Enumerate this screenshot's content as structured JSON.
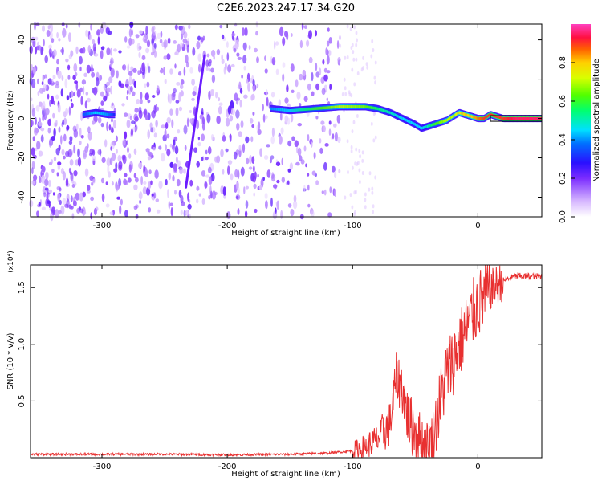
{
  "title": "C2E6.2023.247.17.34.G20",
  "chart_data": [
    {
      "type": "heatmap",
      "xlabel": "Height of straight line (km)",
      "ylabel": "Frequency (Hz)",
      "xlim": [
        -357,
        51
      ],
      "ylim": [
        -50,
        48
      ],
      "xticks": [
        -300,
        -200,
        -100,
        0
      ],
      "yticks": [
        -40,
        -20,
        0,
        20,
        40
      ],
      "colorbar": {
        "label": "Normalized spectral amplitude",
        "range": [
          0,
          1
        ],
        "ticks": [
          0.0,
          0.2,
          0.4,
          0.6,
          0.8
        ],
        "colormap": [
          "#ffffff",
          "#d7b8ff",
          "#7b2cff",
          "#2a10ff",
          "#0070ff",
          "#00e0ff",
          "#00ff70",
          "#50ff00",
          "#d8ff00",
          "#ffd000",
          "#ff6000",
          "#ff1040",
          "#ff40c0"
        ]
      },
      "noise_extent_km": [
        -357,
        -110
      ],
      "signal_track": {
        "x": [
          -315,
          -305,
          -295,
          -290,
          -165,
          -150,
          -130,
          -110,
          -90,
          -80,
          -70,
          -60,
          -50,
          -45,
          -40,
          -35,
          -30,
          -25,
          -20,
          -15,
          -10,
          -5,
          0,
          5,
          10,
          15,
          20,
          30,
          40,
          51
        ],
        "y": [
          2,
          3,
          2,
          2,
          5,
          4,
          5,
          6,
          6,
          5,
          3,
          0,
          -3,
          -5,
          -4,
          -3,
          -2,
          -1,
          1,
          3,
          2,
          1,
          0,
          0,
          2,
          1,
          0,
          0,
          0,
          0
        ],
        "amplitude": [
          0.35,
          0.45,
          0.4,
          0.3,
          0.4,
          0.45,
          0.6,
          0.7,
          0.65,
          0.55,
          0.5,
          0.45,
          0.45,
          0.45,
          0.5,
          0.6,
          0.65,
          0.7,
          0.7,
          0.75,
          0.8,
          0.8,
          0.85,
          0.9,
          0.9,
          0.9,
          0.9,
          0.95,
          0.95,
          0.95
        ]
      },
      "streak": {
        "x": [
          -233,
          -218
        ],
        "y": [
          -35,
          32
        ]
      }
    },
    {
      "type": "line",
      "xlabel": "Height of straight line (km)",
      "ylabel": "SNR (10 * v/v)",
      "yscale_label": "(x10⁴)",
      "xlim": [
        -357,
        51
      ],
      "ylim": [
        0.0,
        1.7
      ],
      "xticks": [
        -300,
        -200,
        -100,
        0
      ],
      "yticks": [
        0.5,
        1.0,
        1.5
      ],
      "color": "#e83030",
      "series": [
        {
          "x": [
            -357,
            -300,
            -250,
            -200,
            -150,
            -120,
            -100,
            -90,
            -80,
            -70,
            -65,
            -60,
            -55,
            -50,
            -45,
            -40,
            -35,
            -30,
            -25,
            -20,
            -15,
            -10,
            -5,
            0,
            10,
            20,
            30,
            40,
            51
          ],
          "y": [
            0.03,
            0.03,
            0.03,
            0.025,
            0.03,
            0.04,
            0.06,
            0.1,
            0.16,
            0.3,
            0.72,
            0.6,
            0.3,
            0.25,
            0.15,
            0.08,
            0.2,
            0.5,
            0.75,
            0.85,
            1.0,
            1.12,
            1.25,
            1.35,
            1.48,
            1.56,
            1.6,
            1.6,
            1.6
          ]
        }
      ]
    }
  ]
}
